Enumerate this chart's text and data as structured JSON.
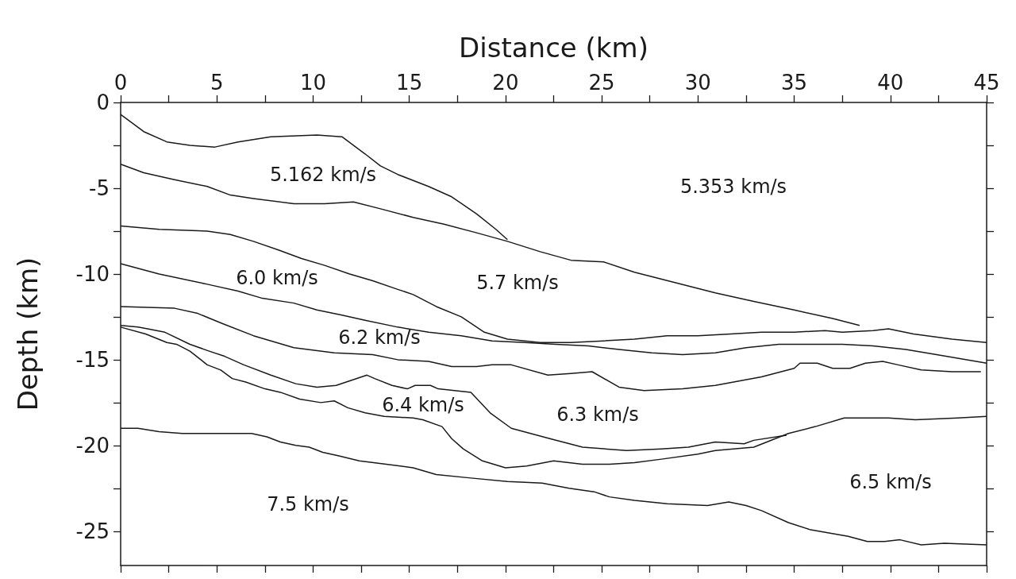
{
  "chart_data": {
    "type": "line",
    "xlabel": "Distance (km)",
    "ylabel": "Depth (km)",
    "xlim": [
      0,
      45
    ],
    "ylim": [
      -27,
      0
    ],
    "xticks": [
      0,
      {
        "value": 2.5,
        "label": null
      },
      5,
      {
        "value": 7.5,
        "label": null
      },
      10,
      {
        "value": 12.5,
        "label": null
      },
      15,
      {
        "value": 17.5,
        "label": null
      },
      20,
      {
        "value": 22.5,
        "label": null
      },
      25,
      {
        "value": 27.5,
        "label": null
      },
      30,
      {
        "value": 32.5,
        "label": null
      },
      35,
      {
        "value": 37.5,
        "label": null
      },
      40,
      {
        "value": 42.5,
        "label": null
      },
      45
    ],
    "yticks": [
      0,
      {
        "value": -2.5,
        "label": null
      },
      -5,
      {
        "value": -7.5,
        "label": null
      },
      -10,
      {
        "value": -12.5,
        "label": null
      },
      -15,
      {
        "value": -17.5,
        "label": null
      },
      -20,
      {
        "value": -22.5,
        "label": null
      },
      -25
    ],
    "grid": false,
    "marker": "none",
    "line_style": "solid",
    "series": [
      {
        "color": "#1a1a1a",
        "x": [
          0,
          1.2,
          2.4,
          3.6,
          4.9,
          6.1,
          7.8,
          10.2,
          11.5,
          12.7,
          13.5,
          14.4,
          16.0,
          17.2,
          18.5,
          19.5,
          20.1
        ],
        "values": [
          -0.7,
          -1.7,
          -2.3,
          -2.5,
          -2.6,
          -2.3,
          -2.0,
          -1.9,
          -2.0,
          -3.0,
          -3.7,
          -4.2,
          -4.9,
          -5.5,
          -6.5,
          -7.4,
          -8.0
        ]
      },
      {
        "color": "#1a1a1a",
        "x": [
          0,
          1.2,
          2.8,
          4.5,
          5.7,
          6.9,
          9.0,
          10.6,
          12.1,
          13.5,
          15.2,
          16.8,
          18.5,
          20.1,
          21.8,
          23.4,
          25.1,
          26.7,
          28.8,
          30.9,
          32.9,
          35.0,
          37.0,
          38.4
        ],
        "values": [
          -3.6,
          -4.1,
          -4.5,
          -4.9,
          -5.4,
          -5.6,
          -5.9,
          -5.9,
          -5.8,
          -6.2,
          -6.7,
          -7.1,
          -7.6,
          -8.1,
          -8.7,
          -9.2,
          -9.3,
          -9.9,
          -10.5,
          -11.1,
          -11.6,
          -12.1,
          -12.6,
          -13.0
        ]
      },
      {
        "color": "#1a1a1a",
        "x": [
          0,
          2.0,
          4.5,
          5.7,
          6.9,
          8.2,
          9.4,
          10.6,
          11.9,
          13.1,
          14.4,
          15.2,
          16.4,
          17.7,
          18.9,
          20.1,
          21.8,
          23.4,
          25.1,
          26.7,
          28.4,
          30.0,
          31.7,
          33.3,
          35.0,
          36.6,
          37.5,
          39.1,
          39.9,
          41.2,
          43.2,
          45
        ],
        "values": [
          -7.2,
          -7.4,
          -7.5,
          -7.7,
          -8.1,
          -8.6,
          -9.1,
          -9.5,
          -10.0,
          -10.4,
          -10.9,
          -11.2,
          -11.9,
          -12.5,
          -13.4,
          -13.8,
          -14.0,
          -14.0,
          -13.9,
          -13.8,
          -13.6,
          -13.6,
          -13.5,
          -13.4,
          -13.4,
          -13.3,
          -13.4,
          -13.3,
          -13.2,
          -13.5,
          -13.8,
          -14.0
        ]
      },
      {
        "color": "#1a1a1a",
        "x": [
          0,
          2.0,
          4.5,
          6.1,
          7.3,
          9.0,
          10.2,
          11.5,
          12.7,
          14.4,
          16.0,
          17.7,
          19.3,
          21.0,
          22.6,
          24.3,
          25.9,
          27.6,
          29.2,
          30.9,
          32.5,
          34.2,
          35.8,
          37.5,
          39.1,
          40.8,
          42.4,
          45
        ],
        "values": [
          -9.4,
          -10.0,
          -10.6,
          -11.0,
          -11.4,
          -11.7,
          -12.1,
          -12.4,
          -12.7,
          -13.1,
          -13.4,
          -13.6,
          -13.9,
          -14.0,
          -14.1,
          -14.2,
          -14.4,
          -14.6,
          -14.7,
          -14.6,
          -14.3,
          -14.1,
          -14.1,
          -14.1,
          -14.2,
          -14.4,
          -14.7,
          -15.2
        ]
      },
      {
        "color": "#1a1a1a",
        "x": [
          0,
          2.8,
          4.0,
          5.3,
          6.9,
          9.0,
          11.1,
          13.1,
          14.4,
          16.0,
          17.2,
          18.5,
          19.3,
          20.3,
          22.2,
          23.4,
          24.5,
          25.9,
          27.2,
          29.2,
          30.9,
          33.3,
          35.0,
          35.3,
          36.2,
          37.0,
          37.9,
          38.7,
          39.6,
          40.4,
          41.6,
          43.2,
          44.7
        ],
        "values": [
          -11.9,
          -12.0,
          -12.3,
          -12.9,
          -13.6,
          -14.3,
          -14.6,
          -14.7,
          -15.0,
          -15.1,
          -15.4,
          -15.4,
          -15.3,
          -15.3,
          -15.9,
          -15.8,
          -15.7,
          -16.6,
          -16.8,
          -16.7,
          -16.5,
          -16.0,
          -15.5,
          -15.2,
          -15.2,
          -15.5,
          -15.5,
          -15.2,
          -15.1,
          -15.3,
          -15.6,
          -15.7,
          -15.7
        ]
      },
      {
        "color": "#1a1a1a",
        "x": [
          0,
          0.9,
          1.4,
          2.3,
          3.6,
          4.6,
          5.4,
          6.4,
          7.8,
          9.1,
          10.2,
          11.2,
          12.0,
          12.8,
          13.2,
          14.1,
          14.9,
          15.3,
          16.1,
          16.5,
          18.2,
          19.2,
          20.3,
          22.3,
          24.0,
          26.3,
          28.1,
          29.5,
          30.9,
          32.4,
          32.9,
          34.6
        ],
        "values": [
          -13.0,
          -13.1,
          -13.2,
          -13.4,
          -14.1,
          -14.5,
          -14.8,
          -15.3,
          -15.9,
          -16.4,
          -16.6,
          -16.5,
          -16.2,
          -15.9,
          -16.1,
          -16.5,
          -16.7,
          -16.5,
          -16.5,
          -16.7,
          -16.9,
          -18.1,
          -19.0,
          -19.6,
          -20.1,
          -20.3,
          -20.2,
          -20.1,
          -19.8,
          -19.9,
          -19.7,
          -19.4
        ]
      },
      {
        "color": "#1a1a1a",
        "x": [
          0,
          1.3,
          2.4,
          2.9,
          3.6,
          4.5,
          5.2,
          5.8,
          6.5,
          7.5,
          8.3,
          9.3,
          10.4,
          11.1,
          11.8,
          12.7,
          13.7,
          15.2,
          15.7,
          16.7,
          17.2,
          17.8,
          18.8,
          20.0,
          21.1,
          22.5,
          24.0,
          25.4,
          26.7,
          28.1,
          30.0,
          30.9,
          32.9,
          34.7,
          36.1,
          37.6,
          39.9,
          41.3,
          43.5,
          45
        ],
        "values": [
          -13.1,
          -13.5,
          -14.0,
          -14.1,
          -14.5,
          -15.3,
          -15.6,
          -16.1,
          -16.3,
          -16.7,
          -16.9,
          -17.3,
          -17.5,
          -17.4,
          -17.8,
          -18.1,
          -18.3,
          -18.4,
          -18.5,
          -18.9,
          -19.6,
          -20.2,
          -20.9,
          -21.3,
          -21.2,
          -20.9,
          -21.1,
          -21.1,
          -21.0,
          -20.8,
          -20.5,
          -20.3,
          -20.1,
          -19.3,
          -18.9,
          -18.4,
          -18.4,
          -18.5,
          -18.4,
          -18.3
        ]
      },
      {
        "color": "#1a1a1a",
        "x": [
          0,
          0.9,
          2.0,
          3.2,
          6.1,
          6.8,
          7.6,
          8.3,
          9.1,
          9.8,
          10.5,
          11.3,
          12.4,
          13.8,
          15.2,
          16.4,
          18.2,
          20.1,
          21.9,
          23.3,
          24.6,
          25.4,
          26.7,
          28.4,
          30.5,
          31.6,
          32.5,
          33.3,
          34.7,
          35.8,
          37.8,
          38.8,
          39.7,
          40.5,
          41.6,
          42.8,
          45
        ],
        "values": [
          -19.0,
          -19.0,
          -19.2,
          -19.3,
          -19.3,
          -19.3,
          -19.5,
          -19.8,
          -20.0,
          -20.1,
          -20.4,
          -20.6,
          -20.9,
          -21.1,
          -21.3,
          -21.7,
          -21.9,
          -22.1,
          -22.2,
          -22.5,
          -22.7,
          -23.0,
          -23.2,
          -23.4,
          -23.5,
          -23.3,
          -23.5,
          -23.8,
          -24.5,
          -24.9,
          -25.3,
          -25.6,
          -25.6,
          -25.5,
          -25.8,
          -25.7,
          -25.8
        ]
      }
    ],
    "annotations": [
      "5.162 km/s",
      "5.353 km/s",
      "6.0 km/s",
      "5.7 km/s",
      "6.2 km/s",
      "6.4 km/s",
      "6.3 km/s",
      "6.5 km/s",
      "7.5 km/s"
    ]
  }
}
